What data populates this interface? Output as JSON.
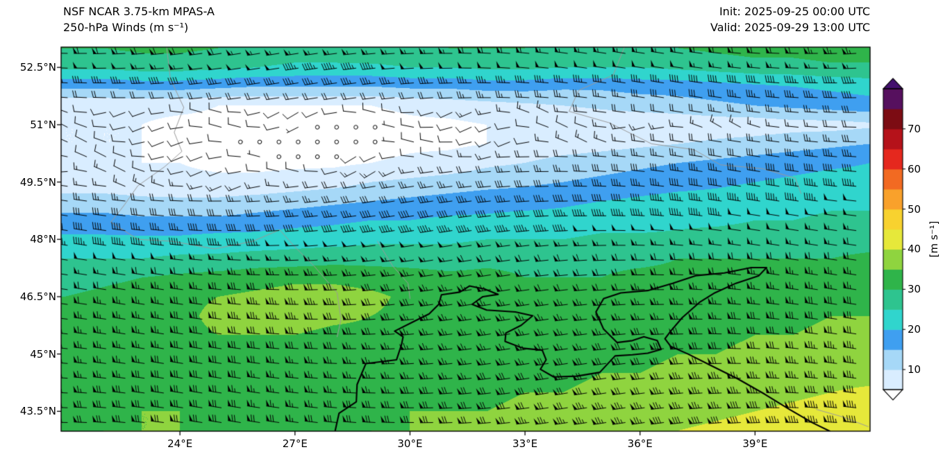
{
  "header": {
    "title_line1": "NSF NCAR 3.75-km MPAS-A",
    "title_line2": "250-hPa Winds (m s⁻¹)",
    "init_time": "Init: 2025-09-25 00:00 UTC",
    "valid_time": "Valid: 2025-09-29 13:00 UTC"
  },
  "axes": {
    "x_ticks": [
      {
        "value": 24,
        "label": "24°E"
      },
      {
        "value": 27,
        "label": "27°E"
      },
      {
        "value": 30,
        "label": "30°E"
      },
      {
        "value": 33,
        "label": "33°E"
      },
      {
        "value": 36,
        "label": "36°E"
      },
      {
        "value": 39,
        "label": "39°E"
      }
    ],
    "y_ticks": [
      {
        "value": 52.5,
        "label": "52.5°N"
      },
      {
        "value": 51,
        "label": "51°N"
      },
      {
        "value": 49.5,
        "label": "49.5°N"
      },
      {
        "value": 48,
        "label": "48°N"
      },
      {
        "value": 46.5,
        "label": "46.5°N"
      },
      {
        "value": 45,
        "label": "45°N"
      },
      {
        "value": 43.5,
        "label": "43.5°N"
      }
    ]
  },
  "colorbar": {
    "ticks": [
      {
        "value": 70,
        "label": "70"
      },
      {
        "value": 60,
        "label": "60"
      },
      {
        "value": 50,
        "label": "50"
      },
      {
        "value": 40,
        "label": "40"
      },
      {
        "value": 30,
        "label": "30"
      },
      {
        "value": 20,
        "label": "20"
      },
      {
        "value": 10,
        "label": "10"
      }
    ],
    "unit_label": "[m s⁻¹]"
  },
  "chart_data": {
    "type": "heatmap",
    "title": "NSF NCAR 3.75-km MPAS-A",
    "subtitle": "250-hPa Winds (m s⁻¹)",
    "init": "2025-09-25 00:00 UTC",
    "valid": "2025-09-29 13:00 UTC",
    "units": "m s⁻¹",
    "lon_range": [
      20.9,
      42.0
    ],
    "lat_range": [
      42.98,
      53.03
    ],
    "levels": [
      5,
      10,
      15,
      20,
      25,
      30,
      35,
      40,
      45,
      50,
      55,
      60,
      65,
      70,
      75,
      80
    ],
    "colors": [
      "#d9edff",
      "#a6d8f7",
      "#3f9ff0",
      "#30d5cd",
      "#2ec48f",
      "#2fb44a",
      "#8fd43f",
      "#e6e83a",
      "#f8d22f",
      "#f9a12b",
      "#f26a22",
      "#e5281e",
      "#b5121a",
      "#7c0c13",
      "#56105e"
    ],
    "under_color": "#ffffff",
    "over_color": "#43106e",
    "coast_color": "#000000",
    "border_color": "#9a9a9a",
    "figure_background": "#ffffff",
    "grid": {
      "lons": [
        21,
        22,
        23,
        24,
        25,
        26,
        27,
        28,
        29,
        30,
        31,
        32,
        33,
        34,
        35,
        36,
        37,
        38,
        39,
        40,
        41,
        42
      ],
      "lats": [
        53,
        52.5,
        52,
        51.5,
        51,
        50.5,
        50,
        49.5,
        49,
        48.5,
        48,
        47.5,
        47,
        46.5,
        46,
        45.5,
        45,
        44.5,
        44,
        43.5,
        43
      ],
      "speeds": [
        [
          30,
          30,
          31,
          31,
          30,
          29,
          28,
          28,
          29,
          29,
          30,
          30,
          30,
          29,
          29,
          29,
          30,
          31,
          32,
          32,
          33,
          33
        ],
        [
          26,
          26,
          27,
          27,
          26,
          25,
          24,
          24,
          24,
          25,
          25,
          26,
          26,
          25,
          25,
          25,
          26,
          27,
          28,
          28,
          29,
          29
        ],
        [
          16,
          16,
          17,
          17,
          16,
          15,
          15,
          15,
          15,
          16,
          16,
          17,
          17,
          16,
          16,
          17,
          17,
          18,
          19,
          20,
          21,
          22
        ],
        [
          6,
          6,
          6,
          6,
          5,
          5,
          5,
          5,
          5,
          6,
          7,
          8,
          9,
          10,
          11,
          12,
          13,
          14,
          15,
          16,
          17,
          18
        ],
        [
          5,
          5,
          5,
          4,
          4,
          4,
          4,
          3,
          3,
          4,
          4,
          5,
          5,
          5,
          6,
          6,
          6,
          7,
          7,
          8,
          8,
          9
        ],
        [
          5,
          5,
          5,
          4,
          4,
          3,
          2,
          2,
          3,
          4,
          4,
          5,
          6,
          7,
          8,
          9,
          10,
          11,
          12,
          13,
          14,
          15
        ],
        [
          6,
          6,
          5,
          5,
          4,
          4,
          4,
          4,
          5,
          6,
          7,
          9,
          10,
          12,
          13,
          14,
          15,
          16,
          17,
          18,
          19,
          20
        ],
        [
          7,
          7,
          7,
          6,
          6,
          6,
          7,
          8,
          10,
          11,
          12,
          13,
          14,
          15,
          16,
          17,
          18,
          19,
          20,
          21,
          22,
          22
        ],
        [
          12,
          12,
          11,
          11,
          11,
          12,
          13,
          14,
          15,
          16,
          17,
          18,
          18,
          19,
          20,
          21,
          22,
          22,
          23,
          23,
          24,
          24
        ],
        [
          17,
          17,
          16,
          16,
          16,
          17,
          18,
          19,
          20,
          20,
          21,
          21,
          22,
          22,
          23,
          23,
          24,
          24,
          25,
          25,
          26,
          26
        ],
        [
          21,
          21,
          21,
          21,
          22,
          22,
          23,
          23,
          24,
          24,
          24,
          25,
          25,
          25,
          26,
          26,
          26,
          27,
          27,
          27,
          28,
          28
        ],
        [
          25,
          25,
          25,
          26,
          26,
          27,
          27,
          28,
          28,
          28,
          28,
          29,
          29,
          29,
          29,
          29,
          30,
          30,
          30,
          30,
          30,
          31
        ],
        [
          28,
          29,
          30,
          31,
          32,
          33,
          34,
          34,
          33,
          32,
          31,
          31,
          30,
          30,
          30,
          31,
          31,
          31,
          32,
          32,
          32,
          33
        ],
        [
          30,
          31,
          32,
          34,
          35,
          36,
          37,
          37,
          36,
          34,
          33,
          32,
          31,
          31,
          31,
          32,
          32,
          32,
          33,
          33,
          34,
          34
        ],
        [
          31,
          32,
          33,
          34,
          36,
          37,
          37,
          36,
          35,
          34,
          33,
          33,
          32,
          32,
          32,
          33,
          33,
          33,
          34,
          34,
          35,
          35
        ],
        [
          32,
          32,
          33,
          34,
          35,
          35,
          35,
          34,
          34,
          33,
          33,
          33,
          33,
          33,
          33,
          34,
          34,
          34,
          35,
          35,
          36,
          36
        ],
        [
          32,
          33,
          33,
          34,
          34,
          34,
          34,
          34,
          33,
          33,
          33,
          33,
          33,
          34,
          34,
          34,
          35,
          35,
          36,
          36,
          37,
          37
        ],
        [
          33,
          33,
          34,
          34,
          34,
          34,
          33,
          33,
          33,
          33,
          33,
          34,
          34,
          34,
          35,
          35,
          36,
          36,
          37,
          37,
          38,
          38
        ],
        [
          33,
          34,
          34,
          34,
          34,
          33,
          33,
          33,
          33,
          34,
          34,
          34,
          35,
          35,
          36,
          36,
          37,
          37,
          38,
          39,
          40,
          41
        ],
        [
          34,
          34,
          35,
          35,
          34,
          34,
          33,
          34,
          34,
          35,
          35,
          35,
          36,
          36,
          37,
          38,
          38,
          39,
          40,
          41,
          42,
          43
        ],
        [
          34,
          35,
          35,
          35,
          34,
          34,
          34,
          34,
          35,
          35,
          36,
          36,
          37,
          37,
          38,
          39,
          40,
          41,
          42,
          43,
          44,
          45
        ]
      ]
    },
    "barbs": {
      "units": "m s⁻¹",
      "base_direction_deg": 270,
      "calm_threshold": 3.5,
      "spacing_px_x": 27.7,
      "spacing_px_y": 21.3
    },
    "coastline": [
      [
        [
          28.05,
          43.0
        ],
        [
          28.15,
          43.45
        ],
        [
          28.6,
          43.75
        ],
        [
          28.62,
          44.2
        ],
        [
          28.85,
          44.75
        ],
        [
          29.65,
          44.85
        ],
        [
          29.78,
          45.25
        ],
        [
          29.82,
          45.45
        ],
        [
          29.6,
          45.6
        ],
        [
          30.1,
          45.85
        ],
        [
          30.5,
          46.05
        ],
        [
          30.75,
          46.3
        ],
        [
          30.82,
          46.55
        ],
        [
          31.3,
          46.62
        ],
        [
          31.55,
          46.78
        ],
        [
          31.95,
          46.7
        ],
        [
          32.3,
          46.56
        ],
        [
          31.9,
          46.5
        ],
        [
          31.62,
          46.3
        ],
        [
          32.0,
          46.15
        ],
        [
          32.75,
          46.1
        ],
        [
          33.2,
          46.0
        ],
        [
          32.9,
          45.75
        ],
        [
          32.5,
          45.55
        ],
        [
          32.48,
          45.33
        ],
        [
          32.95,
          45.15
        ],
        [
          33.45,
          45.1
        ],
        [
          33.55,
          44.85
        ],
        [
          33.4,
          44.6
        ],
        [
          33.75,
          44.4
        ],
        [
          34.35,
          44.42
        ],
        [
          34.95,
          44.52
        ],
        [
          35.35,
          44.95
        ],
        [
          35.8,
          44.98
        ],
        [
          36.2,
          45.02
        ],
        [
          36.55,
          45.12
        ],
        [
          36.45,
          45.35
        ],
        [
          36.1,
          45.45
        ],
        [
          35.8,
          45.35
        ],
        [
          35.4,
          45.3
        ],
        [
          35.05,
          45.65
        ],
        [
          34.85,
          46.1
        ],
        [
          35.05,
          46.45
        ],
        [
          35.5,
          46.6
        ],
        [
          36.2,
          46.66
        ],
        [
          36.85,
          46.85
        ],
        [
          37.45,
          47.05
        ],
        [
          38.2,
          47.12
        ],
        [
          38.9,
          47.26
        ],
        [
          39.3,
          47.26
        ],
        [
          39.1,
          47.05
        ],
        [
          38.5,
          46.85
        ],
        [
          37.95,
          46.6
        ],
        [
          37.55,
          46.35
        ],
        [
          37.1,
          45.95
        ],
        [
          36.8,
          45.6
        ],
        [
          36.65,
          45.4
        ],
        [
          36.8,
          45.2
        ],
        [
          37.25,
          45.0
        ],
        [
          37.85,
          44.7
        ],
        [
          38.55,
          44.35
        ],
        [
          39.25,
          43.95
        ],
        [
          39.9,
          43.55
        ],
        [
          40.5,
          43.2
        ],
        [
          40.95,
          42.98
        ]
      ]
    ],
    "borders": [
      [
        [
          23.65,
          53.05
        ],
        [
          23.75,
          52.2
        ],
        [
          24.1,
          51.45
        ],
        [
          23.85,
          50.8
        ],
        [
          24.05,
          50.3
        ],
        [
          23.6,
          49.9
        ],
        [
          22.9,
          49.4
        ],
        [
          22.55,
          48.9
        ],
        [
          22.2,
          48.45
        ]
      ],
      [
        [
          22.2,
          48.45
        ],
        [
          22.9,
          48.0
        ],
        [
          23.8,
          47.95
        ],
        [
          24.9,
          47.75
        ],
        [
          25.9,
          47.95
        ],
        [
          26.6,
          48.25
        ]
      ],
      [
        [
          26.6,
          48.25
        ],
        [
          27.0,
          47.8
        ],
        [
          27.5,
          47.3
        ],
        [
          28.1,
          46.6
        ],
        [
          28.2,
          45.9
        ],
        [
          28.1,
          45.45
        ]
      ],
      [
        [
          29.15,
          47.95
        ],
        [
          29.55,
          47.3
        ],
        [
          29.95,
          46.85
        ],
        [
          30.0,
          46.45
        ]
      ],
      [
        [
          35.6,
          53.05
        ],
        [
          35.3,
          52.3
        ],
        [
          34.4,
          51.9
        ],
        [
          34.15,
          51.35
        ],
        [
          35.2,
          51.05
        ],
        [
          36.3,
          50.5
        ],
        [
          37.4,
          50.35
        ],
        [
          38.1,
          49.95
        ],
        [
          39.2,
          49.85
        ],
        [
          40.05,
          49.6
        ],
        [
          40.2,
          49.2
        ]
      ],
      [
        [
          40.6,
          43.55
        ],
        [
          41.3,
          43.35
        ],
        [
          41.95,
          43.1
        ]
      ]
    ]
  }
}
